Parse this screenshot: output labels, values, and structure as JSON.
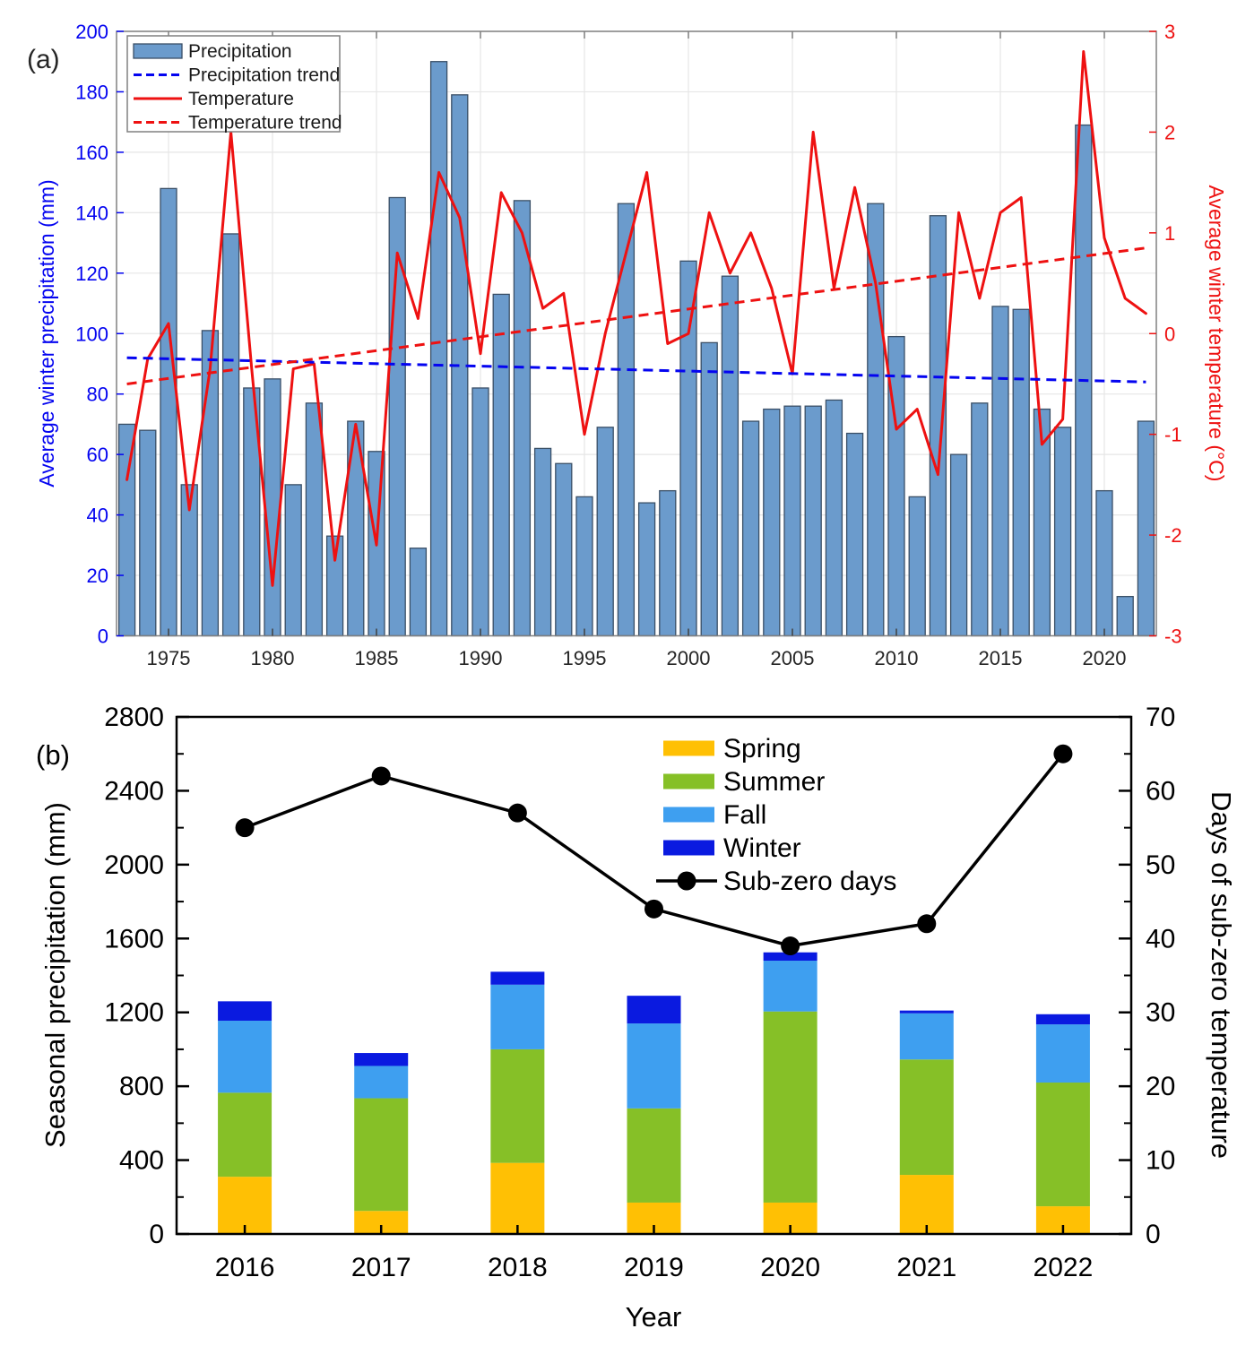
{
  "chart_data": [
    {
      "id": "a",
      "type": "bar+line-dual-axis",
      "panel_label": "(a)",
      "ylabel_left": "Average winter precipitation (mm)",
      "ylabel_right": "Average winter temperature (°C)",
      "ylim_left": [
        0,
        200
      ],
      "ylim_right": [
        -3,
        3
      ],
      "yticks_left": [
        0,
        20,
        40,
        60,
        80,
        100,
        120,
        140,
        160,
        180,
        200
      ],
      "yticks_right": [
        3,
        2,
        1,
        0,
        -1,
        -2,
        -3
      ],
      "xticks": [
        1975,
        1980,
        1985,
        1990,
        1995,
        2000,
        2005,
        2010,
        2015,
        2020
      ],
      "xlim": [
        1972.5,
        2022.5
      ],
      "grid": true,
      "legend_position": "top-left",
      "years": [
        1973,
        1974,
        1975,
        1976,
        1977,
        1978,
        1979,
        1980,
        1981,
        1982,
        1983,
        1984,
        1985,
        1986,
        1987,
        1988,
        1989,
        1990,
        1991,
        1992,
        1993,
        1994,
        1995,
        1996,
        1997,
        1998,
        1999,
        2000,
        2001,
        2002,
        2003,
        2004,
        2005,
        2006,
        2007,
        2008,
        2009,
        2010,
        2011,
        2012,
        2013,
        2014,
        2015,
        2016,
        2017,
        2018,
        2019,
        2020,
        2021,
        2022
      ],
      "series": [
        {
          "name": "Precipitation",
          "type": "bar",
          "axis": "left",
          "values": [
            70,
            68,
            148,
            50,
            101,
            133,
            82,
            85,
            50,
            77,
            33,
            71,
            61,
            145,
            29,
            190,
            179,
            82,
            113,
            144,
            62,
            57,
            46,
            69,
            143,
            44,
            48,
            124,
            97,
            119,
            71,
            75,
            76,
            76,
            78,
            67,
            143,
            99,
            46,
            139,
            60,
            77,
            109,
            108,
            75,
            69,
            169,
            48,
            13,
            71
          ]
        },
        {
          "name": "Precipitation trend",
          "type": "dashed-line",
          "axis": "left",
          "x": [
            1973,
            2022
          ],
          "values": [
            92,
            84
          ]
        },
        {
          "name": "Temperature",
          "type": "line",
          "axis": "right",
          "values": [
            -1.45,
            -0.25,
            0.1,
            -1.75,
            -0.35,
            2.0,
            -0.35,
            -2.5,
            -0.35,
            -0.3,
            -2.25,
            -0.9,
            -2.1,
            0.8,
            0.15,
            1.6,
            1.15,
            -0.2,
            1.4,
            1.0,
            0.25,
            0.4,
            -1.0,
            0.0,
            0.8,
            1.6,
            -0.1,
            0.0,
            1.2,
            0.6,
            1.0,
            0.45,
            -0.4,
            2.0,
            0.45,
            1.45,
            0.5,
            -0.95,
            -0.75,
            -1.4,
            1.2,
            0.35,
            1.2,
            1.35,
            -1.1,
            -0.85,
            2.8,
            0.95,
            0.35,
            0.2
          ]
        },
        {
          "name": "Temperature trend",
          "type": "dashed-line",
          "axis": "right",
          "x": [
            1973,
            2022
          ],
          "values": [
            -0.5,
            0.85
          ]
        }
      ],
      "legend": [
        "Precipitation",
        "Precipitation trend",
        "Temperature",
        "Temperature trend"
      ],
      "colors": {
        "bar_fill": "#6b9bcc",
        "bar_edge": "#3a4f66",
        "blue": "#0404f0",
        "red": "#ee1111",
        "grid": "#e6e6e6",
        "frame": "#808080",
        "tick_text": "#262626"
      }
    },
    {
      "id": "b",
      "type": "stacked-bar+line-dual-axis",
      "panel_label": "(b)",
      "xlabel": "Year",
      "ylabel_left": "Seasonal precipitation (mm)",
      "ylabel_right": "Days of sub-zero temperature",
      "ylim_left": [
        0,
        2800
      ],
      "ylim_right": [
        0,
        70
      ],
      "yticks_left": [
        0,
        400,
        800,
        1200,
        1600,
        2000,
        2400,
        2800
      ],
      "yticks_right": [
        0,
        10,
        20,
        30,
        40,
        50,
        60,
        70
      ],
      "categories": [
        2016,
        2017,
        2018,
        2019,
        2020,
        2021,
        2022
      ],
      "grid": false,
      "series": [
        {
          "name": "Spring",
          "type": "stacked-bar",
          "axis": "left",
          "color": "#ffc004",
          "values": [
            310,
            125,
            385,
            170,
            170,
            320,
            150
          ]
        },
        {
          "name": "Summer",
          "type": "stacked-bar",
          "axis": "left",
          "color": "#86c027",
          "values": [
            455,
            610,
            615,
            510,
            1035,
            625,
            670
          ]
        },
        {
          "name": "Fall",
          "type": "stacked-bar",
          "axis": "left",
          "color": "#3e9ff0",
          "values": [
            390,
            175,
            350,
            460,
            275,
            250,
            315
          ]
        },
        {
          "name": "Winter",
          "type": "stacked-bar",
          "axis": "left",
          "color": "#0a1ae0",
          "values": [
            105,
            70,
            70,
            150,
            45,
            15,
            55
          ]
        },
        {
          "name": "Sub-zero days",
          "type": "line-markers",
          "axis": "right",
          "color": "#000000",
          "values": [
            55,
            62,
            57,
            44,
            39,
            42,
            65
          ]
        }
      ],
      "legend": [
        "Spring",
        "Summer",
        "Fall",
        "Winter",
        "Sub-zero days"
      ],
      "colors": {
        "frame": "#000000",
        "text": "#000000"
      }
    }
  ]
}
